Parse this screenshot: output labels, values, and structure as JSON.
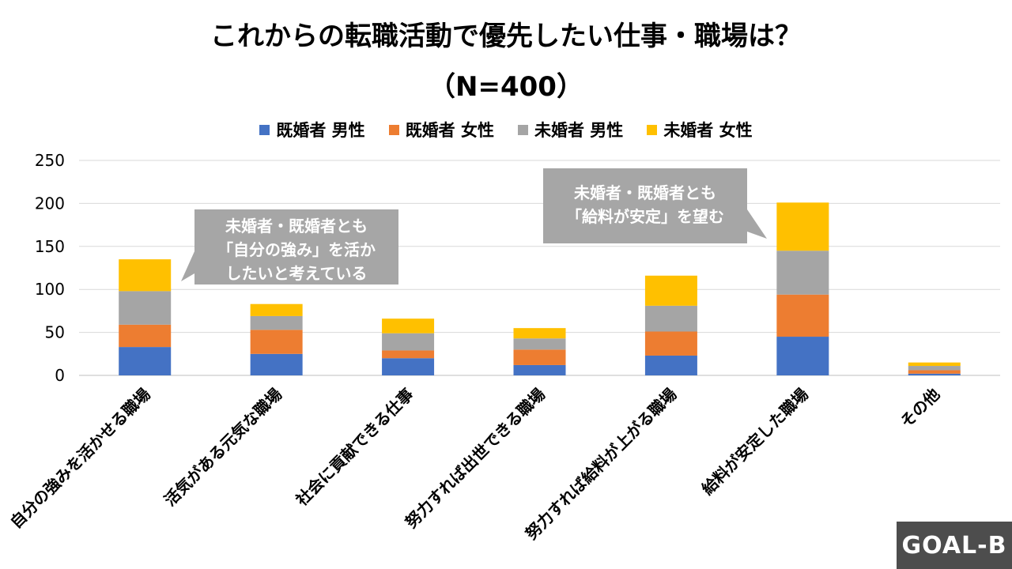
{
  "title_line1": "これからの転職活動で優先したい仕事・職場は？",
  "title_line2": "（N=400）",
  "colors": {
    "s1": "#4472c4",
    "s2": "#ed7d31",
    "s3": "#a5a5a5",
    "s4": "#ffc000",
    "callout": "#a6a6a6"
  },
  "callouts": {
    "c1": [
      "未婚者・既婚者とも",
      "「自分の強み」を活か",
      "したいと考えている"
    ],
    "c2": [
      "未婚者・既婚者とも",
      "「給料が安定」を望む"
    ]
  },
  "logo": "GOAL-B",
  "chart_data": {
    "type": "bar",
    "stacked": true,
    "title": "これからの転職活動で優先したい仕事・職場は？（N=400）",
    "categories": [
      "自分の強みを活かせる職場",
      "活気がある元気な職場",
      "社会に貢献できる仕事",
      "努力すれば出世できる職場",
      "努力すれば給料が上がる職場",
      "給料が安定した職場",
      "その他"
    ],
    "series": [
      {
        "name": "既婚者 男性",
        "values": [
          33,
          25,
          20,
          12,
          23,
          45,
          2
        ]
      },
      {
        "name": "既婚者 女性",
        "values": [
          26,
          28,
          9,
          18,
          28,
          49,
          4
        ]
      },
      {
        "name": "未婚者 男性",
        "values": [
          39,
          16,
          20,
          13,
          30,
          51,
          5
        ]
      },
      {
        "name": "未婚者 女性",
        "values": [
          37,
          14,
          17,
          12,
          35,
          56,
          4
        ]
      }
    ],
    "yticks": [
      0,
      50,
      100,
      150,
      200,
      250
    ],
    "ylim": [
      0,
      250
    ],
    "legend_position": "top",
    "grid": true
  }
}
